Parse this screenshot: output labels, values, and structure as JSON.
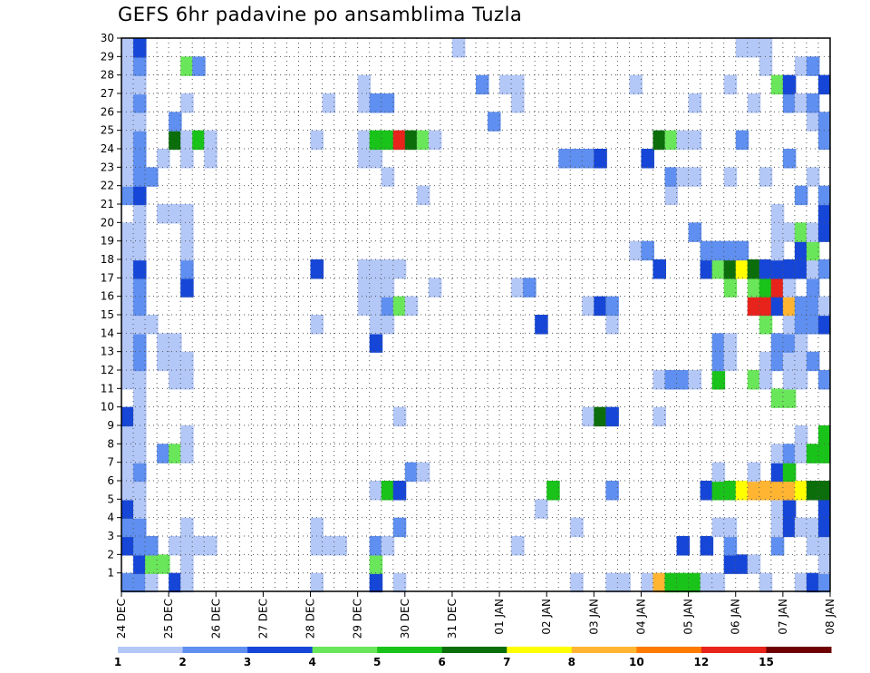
{
  "chart_data": {
    "type": "heatmap",
    "title": "GEFS 6hr padavine po ansamblima Tuzla",
    "x_tick_labels": [
      "24 DEC",
      "25 DEC",
      "26 DEC",
      "27 DEC",
      "28 DEC",
      "29 DEC",
      "30 DEC",
      "31 DEC",
      "01 JAN",
      "02 JAN",
      "03 JAN",
      "04 JAN",
      "05 JAN",
      "06 JAN",
      "07 JAN",
      "08 JAN"
    ],
    "y_tick_labels": [
      "1",
      "2",
      "3",
      "4",
      "5",
      "6",
      "7",
      "8",
      "9",
      "10",
      "11",
      "12",
      "13",
      "14",
      "15",
      "16",
      "17",
      "18",
      "19",
      "20",
      "21",
      "22",
      "23",
      "24",
      "25",
      "26",
      "27",
      "28",
      "29",
      "30"
    ],
    "x_unit": "6-hour step from 24 DEC 00Z",
    "x_range": [
      0,
      60
    ],
    "y_range": [
      0,
      30
    ],
    "grid": true,
    "legend_position": "bottom",
    "color_scale": {
      "thresholds": [
        "1",
        "2",
        "3",
        "4",
        "5",
        "6",
        "7",
        "8",
        "10",
        "12",
        "15",
        "20"
      ],
      "colors": [
        "#b4c8f8",
        "#5f8ff0",
        "#1546d8",
        "#6ae65a",
        "#19c319",
        "#0b6e0b",
        "#ffff00",
        "#ffb532",
        "#ff7a00",
        "#e8231c",
        "#6e0000"
      ]
    },
    "cells": [
      [
        0,
        0,
        2
      ],
      [
        0,
        2,
        3
      ],
      [
        0,
        3,
        2
      ],
      [
        0,
        4,
        3
      ],
      [
        0,
        5,
        1
      ],
      [
        0,
        6,
        1
      ],
      [
        0,
        7,
        1
      ],
      [
        0,
        8,
        1
      ],
      [
        0,
        9,
        3
      ],
      [
        0,
        11,
        1
      ],
      [
        0,
        12,
        1
      ],
      [
        0,
        13,
        1
      ],
      [
        0,
        14,
        1
      ],
      [
        0,
        15,
        1
      ],
      [
        0,
        16,
        1
      ],
      [
        0,
        17,
        1
      ],
      [
        0,
        18,
        1
      ],
      [
        0,
        19,
        1
      ],
      [
        0,
        21,
        2
      ],
      [
        0,
        22,
        1
      ],
      [
        0,
        23,
        1
      ],
      [
        0,
        24,
        1
      ],
      [
        0,
        25,
        1
      ],
      [
        0,
        26,
        1
      ],
      [
        0,
        27,
        1
      ],
      [
        0,
        28,
        1
      ],
      [
        0,
        29,
        1
      ],
      [
        1,
        0,
        2
      ],
      [
        1,
        1,
        3
      ],
      [
        1,
        2,
        2
      ],
      [
        1,
        3,
        2
      ],
      [
        1,
        4,
        1
      ],
      [
        1,
        5,
        1
      ],
      [
        1,
        6,
        2
      ],
      [
        1,
        7,
        1
      ],
      [
        1,
        8,
        1
      ],
      [
        1,
        9,
        1
      ],
      [
        1,
        10,
        1
      ],
      [
        1,
        11,
        1
      ],
      [
        1,
        12,
        2
      ],
      [
        1,
        13,
        2
      ],
      [
        1,
        14,
        1
      ],
      [
        1,
        15,
        2
      ],
      [
        1,
        16,
        2
      ],
      [
        1,
        17,
        3
      ],
      [
        1,
        18,
        1
      ],
      [
        1,
        19,
        1
      ],
      [
        1,
        20,
        1
      ],
      [
        1,
        21,
        3
      ],
      [
        1,
        22,
        2
      ],
      [
        1,
        23,
        2
      ],
      [
        1,
        24,
        2
      ],
      [
        1,
        25,
        1
      ],
      [
        1,
        26,
        2
      ],
      [
        1,
        27,
        1
      ],
      [
        1,
        28,
        2
      ],
      [
        1,
        29,
        3
      ],
      [
        2,
        0,
        1
      ],
      [
        2,
        1,
        4
      ],
      [
        2,
        2,
        2
      ],
      [
        2,
        14,
        1
      ],
      [
        2,
        22,
        2
      ],
      [
        3,
        1,
        4
      ],
      [
        3,
        7,
        2
      ],
      [
        3,
        12,
        1
      ],
      [
        3,
        13,
        1
      ],
      [
        3,
        20,
        1
      ],
      [
        3,
        23,
        1
      ],
      [
        4,
        0,
        3
      ],
      [
        4,
        2,
        1
      ],
      [
        4,
        7,
        4
      ],
      [
        4,
        11,
        1
      ],
      [
        4,
        12,
        1
      ],
      [
        4,
        13,
        1
      ],
      [
        4,
        20,
        1
      ],
      [
        4,
        24,
        6
      ],
      [
        4,
        25,
        2
      ],
      [
        5,
        0,
        1
      ],
      [
        5,
        1,
        1
      ],
      [
        5,
        2,
        1
      ],
      [
        5,
        3,
        1
      ],
      [
        5,
        7,
        1
      ],
      [
        5,
        8,
        1
      ],
      [
        5,
        11,
        1
      ],
      [
        5,
        12,
        1
      ],
      [
        5,
        16,
        3
      ],
      [
        5,
        17,
        2
      ],
      [
        5,
        18,
        1
      ],
      [
        5,
        19,
        1
      ],
      [
        5,
        20,
        1
      ],
      [
        5,
        23,
        1
      ],
      [
        5,
        24,
        1
      ],
      [
        5,
        26,
        1
      ],
      [
        5,
        28,
        4
      ],
      [
        6,
        2,
        1
      ],
      [
        6,
        24,
        5
      ],
      [
        6,
        28,
        2
      ],
      [
        7,
        2,
        1
      ],
      [
        7,
        23,
        1
      ],
      [
        7,
        24,
        1
      ],
      [
        16,
        0,
        1
      ],
      [
        16,
        2,
        1
      ],
      [
        16,
        3,
        1
      ],
      [
        16,
        14,
        1
      ],
      [
        16,
        17,
        3
      ],
      [
        16,
        24,
        1
      ],
      [
        17,
        2,
        1
      ],
      [
        17,
        26,
        1
      ],
      [
        18,
        2,
        1
      ],
      [
        20,
        15,
        1
      ],
      [
        20,
        16,
        1
      ],
      [
        20,
        17,
        1
      ],
      [
        20,
        23,
        1
      ],
      [
        20,
        24,
        1
      ],
      [
        20,
        26,
        1
      ],
      [
        20,
        27,
        1
      ],
      [
        21,
        0,
        3
      ],
      [
        21,
        1,
        4
      ],
      [
        21,
        2,
        2
      ],
      [
        21,
        5,
        1
      ],
      [
        21,
        13,
        3
      ],
      [
        21,
        14,
        1
      ],
      [
        21,
        15,
        1
      ],
      [
        21,
        16,
        1
      ],
      [
        21,
        17,
        1
      ],
      [
        21,
        23,
        1
      ],
      [
        21,
        24,
        5
      ],
      [
        21,
        26,
        2
      ],
      [
        22,
        2,
        1
      ],
      [
        22,
        5,
        5
      ],
      [
        22,
        14,
        1
      ],
      [
        22,
        15,
        2
      ],
      [
        22,
        16,
        1
      ],
      [
        22,
        17,
        1
      ],
      [
        22,
        22,
        1
      ],
      [
        22,
        24,
        5
      ],
      [
        22,
        26,
        2
      ],
      [
        23,
        0,
        1
      ],
      [
        23,
        3,
        2
      ],
      [
        23,
        5,
        3
      ],
      [
        23,
        9,
        1
      ],
      [
        23,
        15,
        4
      ],
      [
        23,
        17,
        1
      ],
      [
        23,
        24,
        10
      ],
      [
        24,
        6,
        2
      ],
      [
        24,
        15,
        1
      ],
      [
        24,
        24,
        6
      ],
      [
        25,
        6,
        1
      ],
      [
        25,
        21,
        1
      ],
      [
        25,
        24,
        4
      ],
      [
        26,
        16,
        1
      ],
      [
        26,
        24,
        1
      ],
      [
        28,
        29,
        1
      ],
      [
        30,
        27,
        2
      ],
      [
        31,
        25,
        2
      ],
      [
        32,
        27,
        1
      ],
      [
        33,
        2,
        1
      ],
      [
        33,
        16,
        1
      ],
      [
        33,
        26,
        1
      ],
      [
        33,
        27,
        1
      ],
      [
        34,
        16,
        2
      ],
      [
        35,
        4,
        1
      ],
      [
        35,
        14,
        3
      ],
      [
        36,
        5,
        5
      ],
      [
        37,
        23,
        2
      ],
      [
        38,
        0,
        1
      ],
      [
        38,
        3,
        1
      ],
      [
        38,
        23,
        2
      ],
      [
        39,
        9,
        1
      ],
      [
        39,
        15,
        1
      ],
      [
        39,
        23,
        2
      ],
      [
        40,
        9,
        6
      ],
      [
        40,
        15,
        3
      ],
      [
        40,
        23,
        3
      ],
      [
        41,
        0,
        1
      ],
      [
        41,
        5,
        2
      ],
      [
        41,
        9,
        3
      ],
      [
        41,
        14,
        1
      ],
      [
        41,
        15,
        2
      ],
      [
        42,
        0,
        1
      ],
      [
        43,
        18,
        1
      ],
      [
        43,
        27,
        1
      ],
      [
        44,
        0,
        1
      ],
      [
        44,
        18,
        2
      ],
      [
        44,
        23,
        3
      ],
      [
        45,
        0,
        8
      ],
      [
        45,
        9,
        1
      ],
      [
        45,
        11,
        1
      ],
      [
        45,
        17,
        3
      ],
      [
        45,
        24,
        6
      ],
      [
        46,
        0,
        5
      ],
      [
        46,
        11,
        2
      ],
      [
        46,
        21,
        1
      ],
      [
        46,
        22,
        2
      ],
      [
        46,
        24,
        4
      ],
      [
        47,
        0,
        5
      ],
      [
        47,
        2,
        3
      ],
      [
        47,
        11,
        2
      ],
      [
        47,
        22,
        1
      ],
      [
        47,
        24,
        1
      ],
      [
        48,
        0,
        5
      ],
      [
        48,
        11,
        1
      ],
      [
        48,
        19,
        2
      ],
      [
        48,
        22,
        1
      ],
      [
        48,
        24,
        1
      ],
      [
        48,
        26,
        1
      ],
      [
        49,
        0,
        1
      ],
      [
        49,
        2,
        3
      ],
      [
        49,
        5,
        3
      ],
      [
        49,
        17,
        3
      ],
      [
        49,
        18,
        2
      ],
      [
        50,
        0,
        1
      ],
      [
        50,
        3,
        1
      ],
      [
        50,
        5,
        5
      ],
      [
        50,
        6,
        1
      ],
      [
        50,
        11,
        5
      ],
      [
        50,
        12,
        2
      ],
      [
        50,
        13,
        2
      ],
      [
        50,
        17,
        4
      ],
      [
        50,
        18,
        2
      ],
      [
        51,
        1,
        3
      ],
      [
        51,
        2,
        2
      ],
      [
        51,
        3,
        1
      ],
      [
        51,
        5,
        5
      ],
      [
        51,
        12,
        1
      ],
      [
        51,
        13,
        1
      ],
      [
        51,
        16,
        4
      ],
      [
        51,
        17,
        6
      ],
      [
        51,
        18,
        2
      ],
      [
        51,
        22,
        1
      ],
      [
        51,
        27,
        1
      ],
      [
        52,
        1,
        3
      ],
      [
        52,
        5,
        7
      ],
      [
        52,
        17,
        7
      ],
      [
        52,
        18,
        2
      ],
      [
        52,
        24,
        2
      ],
      [
        52,
        29,
        1
      ],
      [
        53,
        1,
        1
      ],
      [
        53,
        5,
        8
      ],
      [
        53,
        6,
        1
      ],
      [
        53,
        11,
        4
      ],
      [
        53,
        15,
        10
      ],
      [
        53,
        16,
        4
      ],
      [
        53,
        17,
        6
      ],
      [
        53,
        26,
        1
      ],
      [
        53,
        29,
        1
      ],
      [
        54,
        0,
        1
      ],
      [
        54,
        5,
        8
      ],
      [
        54,
        11,
        1
      ],
      [
        54,
        12,
        1
      ],
      [
        54,
        14,
        4
      ],
      [
        54,
        15,
        10
      ],
      [
        54,
        16,
        5
      ],
      [
        54,
        17,
        3
      ],
      [
        54,
        22,
        1
      ],
      [
        54,
        28,
        1
      ],
      [
        54,
        29,
        1
      ],
      [
        55,
        2,
        2
      ],
      [
        55,
        3,
        1
      ],
      [
        55,
        4,
        1
      ],
      [
        55,
        5,
        8
      ],
      [
        55,
        6,
        3
      ],
      [
        55,
        7,
        1
      ],
      [
        55,
        10,
        4
      ],
      [
        55,
        12,
        2
      ],
      [
        55,
        13,
        2
      ],
      [
        55,
        15,
        3
      ],
      [
        55,
        16,
        10
      ],
      [
        55,
        17,
        3
      ],
      [
        55,
        18,
        1
      ],
      [
        55,
        19,
        1
      ],
      [
        55,
        20,
        1
      ],
      [
        55,
        27,
        4
      ],
      [
        56,
        3,
        3
      ],
      [
        56,
        4,
        3
      ],
      [
        56,
        5,
        8
      ],
      [
        56,
        6,
        5
      ],
      [
        56,
        7,
        2
      ],
      [
        56,
        10,
        4
      ],
      [
        56,
        11,
        1
      ],
      [
        56,
        12,
        1
      ],
      [
        56,
        13,
        2
      ],
      [
        56,
        14,
        1
      ],
      [
        56,
        15,
        8
      ],
      [
        56,
        16,
        1
      ],
      [
        56,
        17,
        3
      ],
      [
        56,
        19,
        1
      ],
      [
        56,
        23,
        2
      ],
      [
        56,
        26,
        2
      ],
      [
        56,
        27,
        3
      ],
      [
        57,
        0,
        1
      ],
      [
        57,
        3,
        1
      ],
      [
        57,
        5,
        7
      ],
      [
        57,
        7,
        1
      ],
      [
        57,
        8,
        1
      ],
      [
        57,
        11,
        1
      ],
      [
        57,
        12,
        1
      ],
      [
        57,
        13,
        1
      ],
      [
        57,
        14,
        2
      ],
      [
        57,
        15,
        2
      ],
      [
        57,
        17,
        3
      ],
      [
        57,
        18,
        3
      ],
      [
        57,
        19,
        4
      ],
      [
        57,
        21,
        2
      ],
      [
        57,
        26,
        1
      ],
      [
        57,
        28,
        1
      ],
      [
        58,
        0,
        3
      ],
      [
        58,
        2,
        1
      ],
      [
        58,
        3,
        1
      ],
      [
        58,
        5,
        6
      ],
      [
        58,
        7,
        5
      ],
      [
        58,
        12,
        2
      ],
      [
        58,
        14,
        2
      ],
      [
        58,
        15,
        2
      ],
      [
        58,
        16,
        2
      ],
      [
        58,
        17,
        1
      ],
      [
        58,
        18,
        4
      ],
      [
        58,
        19,
        1
      ],
      [
        58,
        22,
        1
      ],
      [
        58,
        25,
        1
      ],
      [
        58,
        26,
        2
      ],
      [
        58,
        28,
        2
      ],
      [
        59,
        0,
        2
      ],
      [
        59,
        1,
        1
      ],
      [
        59,
        2,
        1
      ],
      [
        59,
        3,
        3
      ],
      [
        59,
        4,
        3
      ],
      [
        59,
        5,
        6
      ],
      [
        59,
        7,
        5
      ],
      [
        59,
        8,
        5
      ],
      [
        59,
        11,
        2
      ],
      [
        59,
        14,
        3
      ],
      [
        59,
        15,
        1
      ],
      [
        59,
        17,
        2
      ],
      [
        59,
        19,
        3
      ],
      [
        59,
        20,
        3
      ],
      [
        59,
        21,
        2
      ],
      [
        59,
        24,
        2
      ],
      [
        59,
        25,
        2
      ],
      [
        59,
        27,
        3
      ]
    ]
  }
}
